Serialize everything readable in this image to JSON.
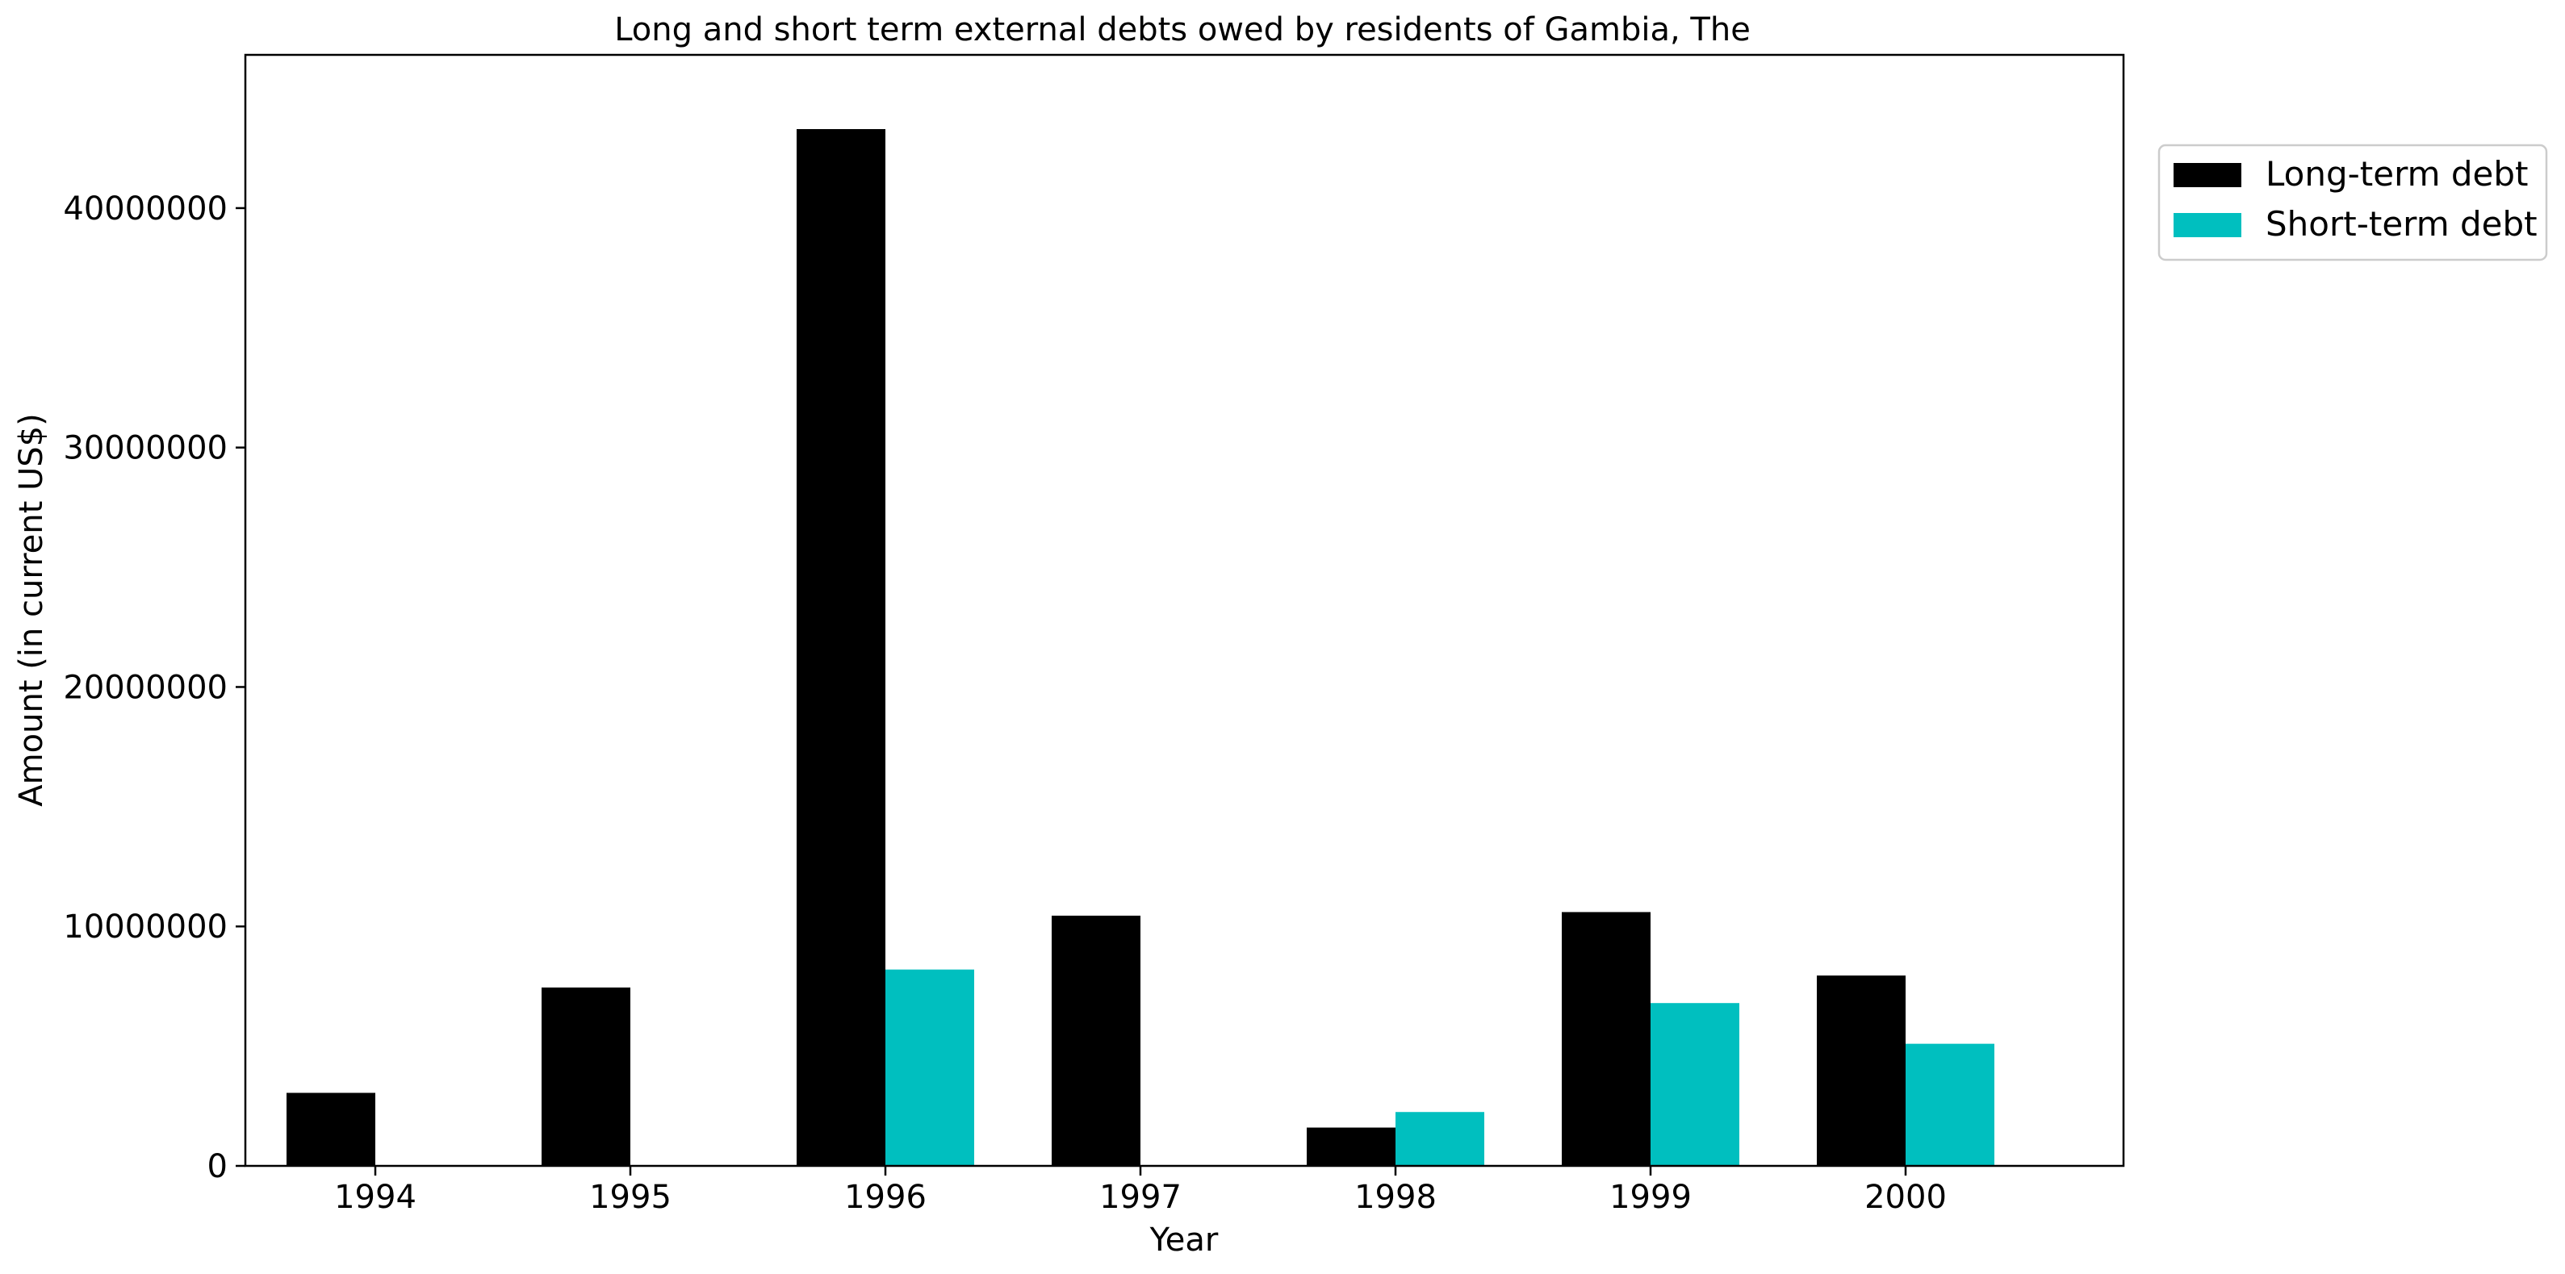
{
  "chart_data": {
    "type": "bar",
    "title": "Long and short term external debts owed by residents of Gambia, The",
    "xlabel": "Year",
    "ylabel": "Amount (in current US$)",
    "categories": [
      "1994",
      "1995",
      "1996",
      "1997",
      "1998",
      "1999",
      "2000"
    ],
    "series": [
      {
        "name": "Long-term debt",
        "color": "#000000",
        "values": [
          3050000,
          7450000,
          43300000,
          10450000,
          1600000,
          10600000,
          7950000
        ]
      },
      {
        "name": "Short-term debt",
        "color": "#00bfbf",
        "values": [
          0,
          0,
          8200000,
          0,
          2250000,
          6800000,
          5100000
        ]
      }
    ],
    "ylim": [
      0,
      46400000
    ],
    "yticks": [
      0,
      10000000,
      20000000,
      30000000,
      40000000
    ],
    "ytick_labels": [
      "0",
      "10000000",
      "20000000",
      "30000000",
      "40000000"
    ],
    "grid": false,
    "legend_position": "upper-right-outside"
  }
}
